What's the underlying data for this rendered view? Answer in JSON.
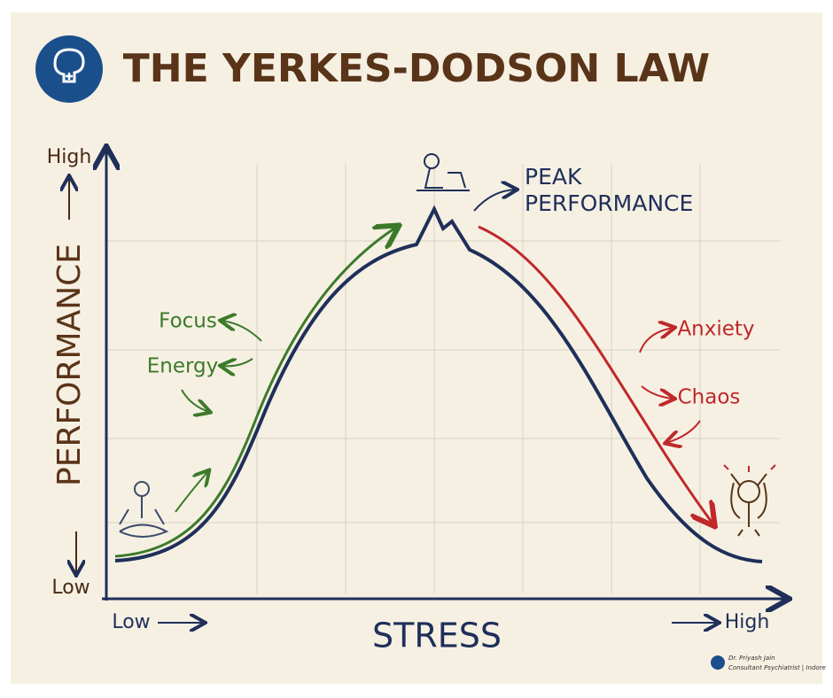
{
  "header": {
    "title": "THE YERKES-DODSON LAW"
  },
  "y_axis": {
    "label": "PERFORMANCE",
    "high": "High",
    "low": "Low"
  },
  "x_axis": {
    "label": "STRESS",
    "low": "Low",
    "high": "High"
  },
  "annotations": {
    "peak": [
      "PEAK",
      "PERFORMANCE"
    ],
    "rising": [
      "Focus",
      "Energy"
    ],
    "falling": [
      "Anxiety",
      "Chaos"
    ]
  },
  "credit": {
    "name": "Dr. Priyash Jain",
    "role": "Consultant Psychiatrist | Indore"
  }
}
